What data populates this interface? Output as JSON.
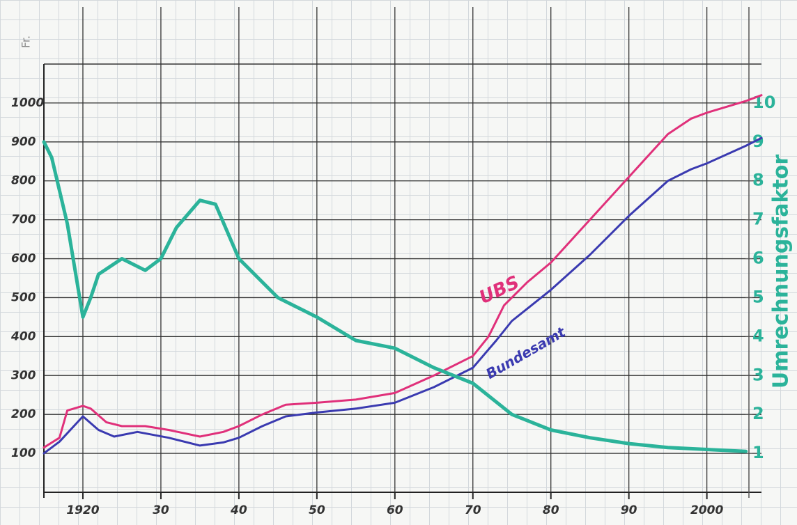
{
  "chart_data": {
    "type": "line",
    "ylabel": "Fr.",
    "y2label": "Umrechnungsfaktor",
    "xlim": [
      1915,
      2007
    ],
    "xticks": [
      1920,
      {
        "value": 1930,
        "label": "30"
      },
      {
        "value": 1940,
        "label": "40"
      },
      {
        "value": 1950,
        "label": "50"
      },
      {
        "value": 1960,
        "label": "60"
      },
      {
        "value": 1970,
        "label": "70"
      },
      {
        "value": 1980,
        "label": "80"
      },
      {
        "value": 1990,
        "label": "90"
      },
      2000
    ],
    "ylim": [
      0,
      1100
    ],
    "yticks": [
      100,
      200,
      300,
      400,
      500,
      600,
      700,
      800,
      900,
      1000
    ],
    "y2lim": [
      0,
      11
    ],
    "y2ticks": [
      1,
      2,
      3,
      4,
      5,
      6,
      7,
      8,
      9,
      10
    ],
    "grid": true,
    "series": [
      {
        "name": "UBS",
        "color": "#e0307a",
        "x": [
          1915,
          1917,
          1918,
          1920,
          1921,
          1923,
          1925,
          1928,
          1931,
          1935,
          1938,
          1940,
          1943,
          1946,
          1950,
          1955,
          1960,
          1965,
          1970,
          1972,
          1974,
          1977,
          1980,
          1985,
          1990,
          1995,
          1998,
          2000,
          2005,
          2007
        ],
        "values": [
          115,
          140,
          210,
          222,
          215,
          180,
          170,
          170,
          160,
          143,
          155,
          170,
          200,
          225,
          230,
          238,
          255,
          300,
          350,
          400,
          480,
          540,
          590,
          700,
          810,
          920,
          960,
          975,
          1005,
          1020
        ]
      },
      {
        "name": "Bundesamt",
        "color": "#3a3ab0",
        "x": [
          1915,
          1917,
          1920,
          1922,
          1924,
          1927,
          1931,
          1935,
          1938,
          1940,
          1943,
          1946,
          1950,
          1955,
          1960,
          1965,
          1970,
          1973,
          1975,
          1980,
          1985,
          1990,
          1995,
          1998,
          2000,
          2005,
          2007
        ],
        "values": [
          100,
          130,
          195,
          160,
          143,
          155,
          140,
          120,
          128,
          140,
          170,
          195,
          205,
          215,
          230,
          270,
          320,
          390,
          440,
          520,
          610,
          710,
          800,
          830,
          845,
          890,
          910
        ]
      },
      {
        "name": "Umrechnungsfaktor",
        "color": "#2bb39a",
        "axis": "y2",
        "x": [
          1915,
          1916,
          1918,
          1920,
          1921,
          1922,
          1925,
          1928,
          1930,
          1932,
          1935,
          1937,
          1940,
          1943,
          1945,
          1950,
          1955,
          1960,
          1965,
          1970,
          1975,
          1980,
          1985,
          1990,
          1995,
          2000,
          2005
        ],
        "values": [
          9.0,
          8.6,
          6.9,
          4.5,
          5.0,
          5.6,
          6.0,
          5.7,
          6.0,
          6.8,
          7.5,
          7.4,
          6.0,
          5.4,
          5.0,
          4.5,
          3.9,
          3.7,
          3.2,
          2.8,
          2.0,
          1.6,
          1.4,
          1.25,
          1.15,
          1.1,
          1.05
        ]
      }
    ]
  }
}
